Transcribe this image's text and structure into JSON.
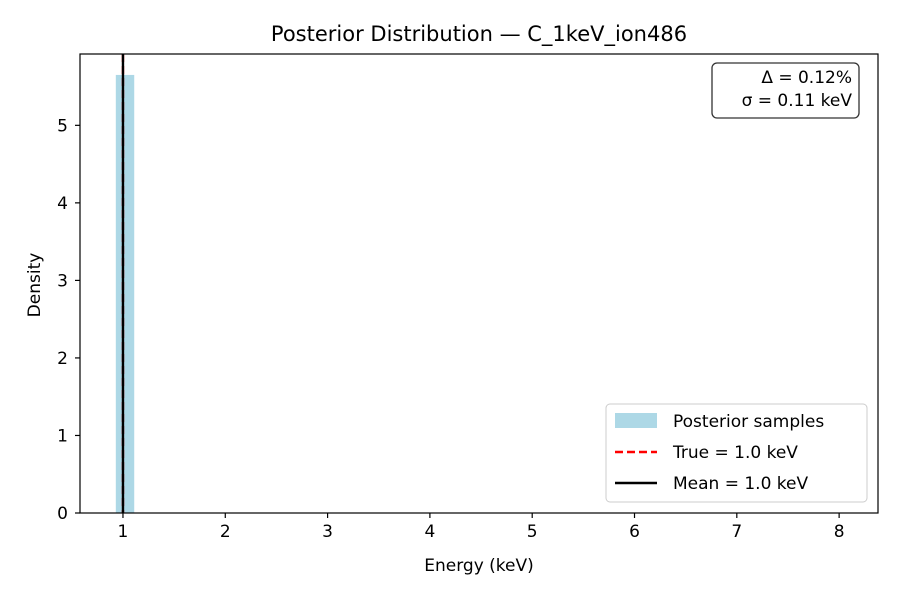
{
  "chart_data": {
    "type": "bar",
    "title": "Posterior Distribution — C_1keV_ion486",
    "xlabel": "Energy (keV)",
    "ylabel": "Density",
    "xlim": [
      0.58,
      8.38
    ],
    "ylim": [
      0,
      5.92
    ],
    "xticks": [
      1,
      2,
      3,
      4,
      5,
      6,
      7,
      8
    ],
    "yticks": [
      0,
      1,
      2,
      3,
      4,
      5
    ],
    "grid": false,
    "legend_position": "lower-right",
    "histogram": {
      "name": "Posterior samples",
      "color": "#add8e6",
      "bins": [
        {
          "x0": 0.93,
          "x1": 1.11,
          "density": 5.65
        }
      ]
    },
    "lines": [
      {
        "name": "True = 1.0 keV",
        "x": 1.0,
        "color": "#ff0000",
        "style": "dashed"
      },
      {
        "name": "Mean = 1.0 keV",
        "x": 1.0,
        "color": "#000000",
        "style": "solid"
      }
    ],
    "annotation": {
      "lines": [
        "Δ = 0.12%",
        "σ = 0.11 keV"
      ],
      "position": "top-right"
    }
  }
}
